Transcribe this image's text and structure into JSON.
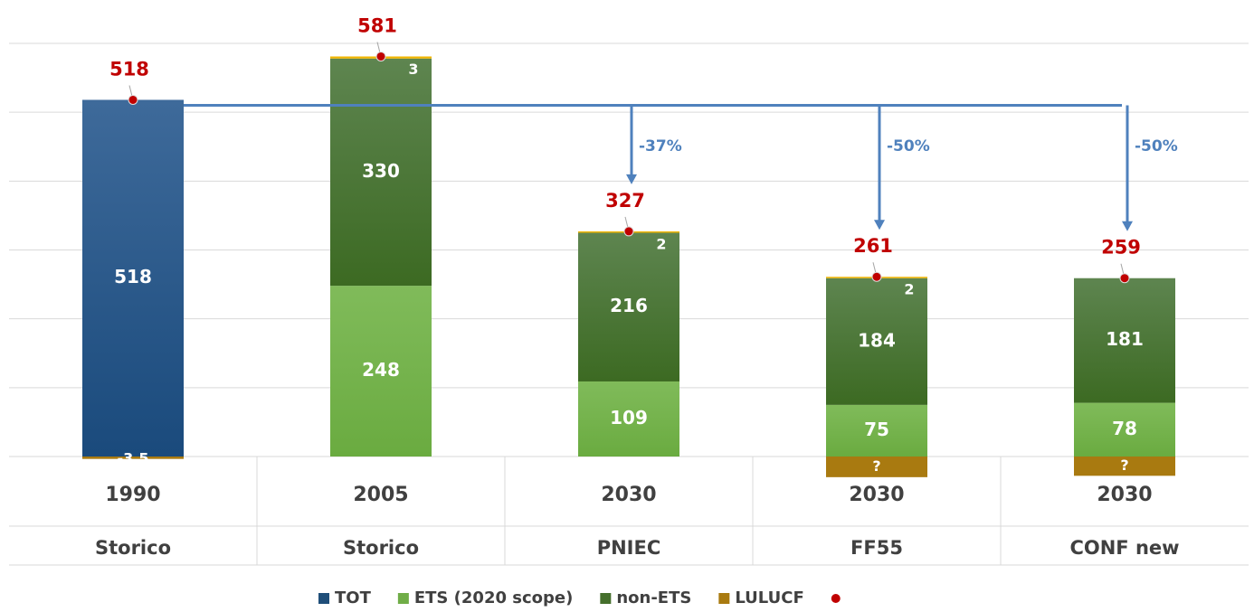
{
  "chart_data": {
    "type": "bar",
    "stacked": true,
    "categories": [
      "1990",
      "2005",
      "2030",
      "2030",
      "2030"
    ],
    "groups": [
      "Storico",
      "Storico",
      "PNIEC",
      "FF55",
      "CONF new"
    ],
    "series": [
      {
        "name": "TOT",
        "color": "#1f4e79",
        "values": [
          518,
          null,
          null,
          null,
          null
        ]
      },
      {
        "name": "ETS (2020 scope)",
        "color": "#70ad47",
        "values": [
          null,
          248,
          109,
          75,
          78
        ]
      },
      {
        "name": "non-ETS",
        "color": "#456f2c",
        "values": [
          null,
          330,
          216,
          184,
          181
        ]
      },
      {
        "color": "#f0b400",
        "values": [
          null,
          3,
          2,
          2,
          null
        ]
      },
      {
        "name": "LULUCF",
        "color": "#a97a10",
        "values": [
          -3.5,
          null,
          null,
          -30,
          -28
        ],
        "value_labels": [
          "-3,5",
          null,
          null,
          "?",
          "?"
        ]
      }
    ],
    "totals": {
      "color": "#c00000",
      "values": [
        518,
        581,
        327,
        261,
        259
      ]
    },
    "reductions": [
      null,
      null,
      -37,
      -50,
      -50
    ],
    "reduction_labels": [
      null,
      null,
      "-37%",
      "-50%",
      "-50%"
    ],
    "ylim": [
      0,
      600
    ],
    "yticks": [
      0,
      100,
      200,
      300,
      400,
      500,
      600
    ],
    "grid": true
  }
}
